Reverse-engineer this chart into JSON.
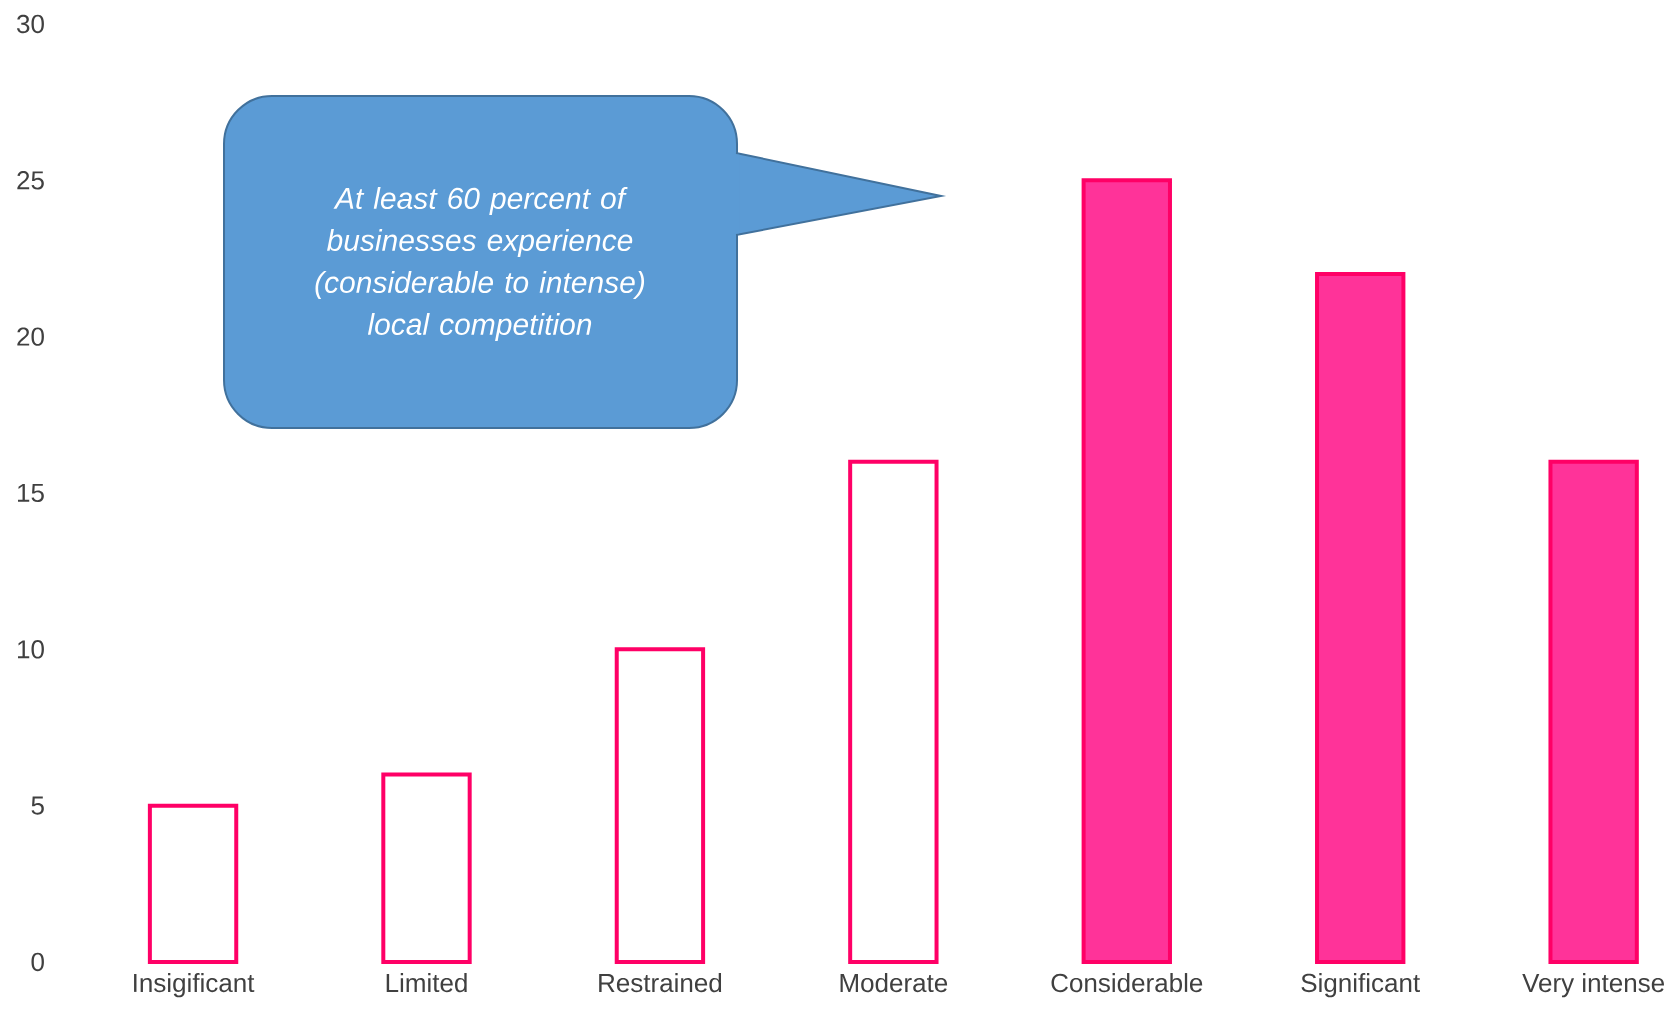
{
  "chart_data": {
    "type": "bar",
    "categories": [
      "Insigificant",
      "Limited",
      "Restrained",
      "Moderate",
      "Considerable",
      "Significant",
      "Very intense"
    ],
    "series": [
      {
        "color": "#ff0066",
        "values": [
          5,
          6,
          10,
          16,
          25,
          22,
          16
        ],
        "colors": [
          "#ffffff",
          "#ffffff",
          "#ffffff",
          "#ffffff",
          "#ff3399",
          "#ff3399",
          "#ff3399"
        ]
      }
    ],
    "ylim": [
      0,
      30
    ],
    "yticks": [
      0,
      5,
      10,
      15,
      20,
      25,
      30
    ],
    "annotations": [
      "At least 60 percent of businesses experience (considerable to intense) local competition"
    ]
  }
}
